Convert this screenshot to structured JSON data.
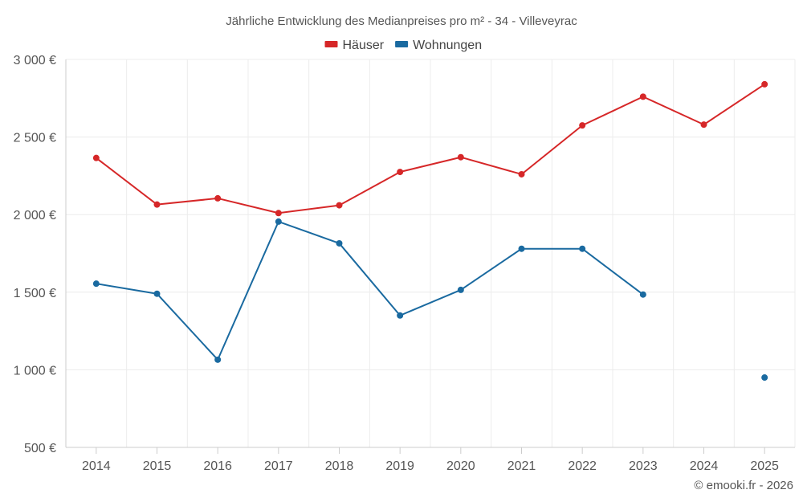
{
  "chart_data": {
    "type": "line",
    "title": "Jährliche Entwicklung des Medianpreises pro m² - 34 - Villeveyrac",
    "categories": [
      "2014",
      "2015",
      "2016",
      "2017",
      "2018",
      "2019",
      "2020",
      "2021",
      "2022",
      "2023",
      "2024",
      "2025"
    ],
    "ylim": [
      500,
      3000
    ],
    "yticks": [
      500,
      1000,
      1500,
      2000,
      2500,
      3000
    ],
    "ytick_labels": [
      "500 €",
      "1 000 €",
      "1 500 €",
      "2 000 €",
      "2 500 €",
      "3 000 €"
    ],
    "xlabel": "",
    "ylabel": "",
    "grid": true,
    "legend_position": "top-center",
    "series": [
      {
        "name": "Häuser",
        "color": "#d62728",
        "values": [
          2365,
          2065,
          2105,
          2010,
          2060,
          2275,
          2370,
          2260,
          2575,
          2760,
          2580,
          2840
        ]
      },
      {
        "name": "Wohnungen",
        "color": "#1a6aa0",
        "values": [
          1555,
          1490,
          1065,
          1955,
          1815,
          1350,
          1515,
          1780,
          1780,
          1485,
          null,
          950
        ]
      }
    ]
  },
  "credit": "© emooki.fr - 2026"
}
